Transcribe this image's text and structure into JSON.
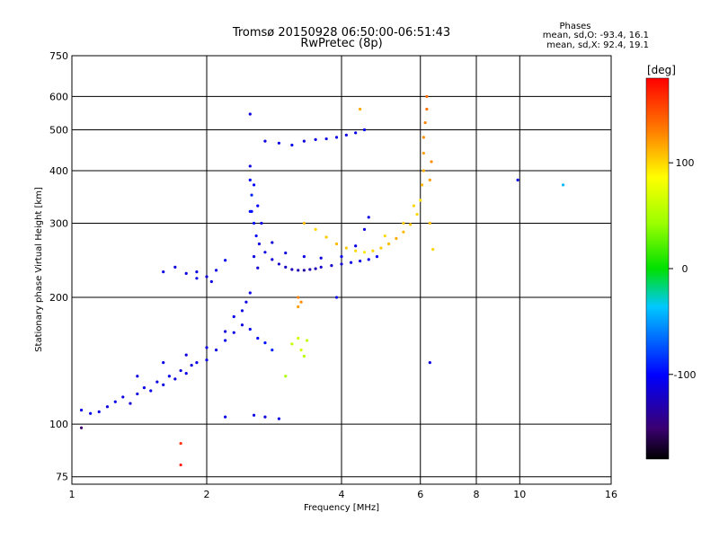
{
  "chart_data": {
    "type": "scatter",
    "title_line1": "Tromsø 20150928 06:50:00-06:51:43",
    "title_line2": "RwPretec (8p)",
    "stats": {
      "heading": "Phases",
      "o_line": "mean, sd,O: -93.4, 16.1",
      "x_line": "mean, sd,X:  92.4, 19.1"
    },
    "xlabel": "Frequency [MHz]",
    "ylabel": "Stationary phase Virtual Height [km]",
    "x_scale": "log",
    "y_scale": "log",
    "xlim": [
      1,
      16
    ],
    "ylim": [
      72,
      750
    ],
    "x_ticks": [
      {
        "value": 1,
        "label": "1"
      },
      {
        "value": 2,
        "label": "2"
      },
      {
        "value": 4,
        "label": "4"
      },
      {
        "value": 6,
        "label": "6"
      },
      {
        "value": 8,
        "label": "8"
      },
      {
        "value": 10,
        "label": "10"
      },
      {
        "value": 16,
        "label": "16"
      }
    ],
    "y_ticks": [
      {
        "value": 75,
        "label": "75"
      },
      {
        "value": 100,
        "label": "100"
      },
      {
        "value": 200,
        "label": "200"
      },
      {
        "value": 300,
        "label": "300"
      },
      {
        "value": 400,
        "label": "400"
      },
      {
        "value": 500,
        "label": "500"
      },
      {
        "value": 600,
        "label": "600"
      },
      {
        "value": 750,
        "label": "750"
      }
    ],
    "grid": true,
    "colorbar": {
      "label": "[deg]",
      "range": [
        -180,
        180
      ],
      "ticks": [
        {
          "value": 100,
          "label": "100"
        },
        {
          "value": 0,
          "label": "0"
        },
        {
          "value": -100,
          "label": "-100"
        }
      ]
    },
    "series": [
      {
        "points": [
          [
            1.05,
            108,
            -110
          ],
          [
            1.1,
            106,
            -105
          ],
          [
            1.15,
            107,
            -110
          ],
          [
            1.2,
            110,
            -112
          ],
          [
            1.25,
            113,
            -108
          ],
          [
            1.3,
            116,
            -110
          ],
          [
            1.35,
            112,
            -115
          ],
          [
            1.4,
            118,
            -112
          ],
          [
            1.45,
            122,
            -110
          ],
          [
            1.5,
            120,
            -108
          ],
          [
            1.55,
            126,
            -112
          ],
          [
            1.6,
            124,
            -110
          ],
          [
            1.65,
            130,
            -105
          ],
          [
            1.7,
            128,
            -112
          ],
          [
            1.75,
            134,
            -110
          ],
          [
            1.8,
            132,
            -108
          ],
          [
            1.85,
            138,
            -112
          ],
          [
            1.9,
            140,
            -110
          ],
          [
            2.0,
            142,
            -110
          ],
          [
            2.1,
            150,
            -112
          ],
          [
            2.2,
            158,
            -108
          ],
          [
            2.3,
            165,
            -110
          ],
          [
            2.4,
            172,
            -112
          ],
          [
            2.5,
            168,
            -105
          ],
          [
            2.6,
            160,
            -100
          ],
          [
            2.7,
            156,
            -95
          ],
          [
            2.8,
            150,
            -90
          ],
          [
            1.4,
            130,
            -110
          ],
          [
            1.6,
            140,
            -108
          ],
          [
            1.8,
            146,
            -112
          ],
          [
            2.0,
            152,
            -110
          ],
          [
            2.2,
            166,
            -112
          ],
          [
            2.4,
            186,
            -110
          ],
          [
            2.45,
            195,
            -112
          ],
          [
            2.5,
            205,
            -110
          ],
          [
            2.3,
            180,
            -108
          ]
        ]
      },
      {
        "points": [
          [
            1.7,
            236,
            -112
          ],
          [
            1.8,
            228,
            -110
          ],
          [
            1.9,
            222,
            -108
          ],
          [
            2.0,
            224,
            -112
          ],
          [
            2.1,
            232,
            -110
          ],
          [
            2.2,
            245,
            -108
          ],
          [
            1.9,
            230,
            -110
          ],
          [
            2.05,
            218,
            -112
          ]
        ]
      },
      {
        "points": [
          [
            2.5,
            410,
            -110
          ],
          [
            2.5,
            380,
            -100
          ],
          [
            2.52,
            350,
            -90
          ],
          [
            2.52,
            320,
            -100
          ],
          [
            2.55,
            300,
            -95
          ],
          [
            2.58,
            280,
            -105
          ],
          [
            2.62,
            268,
            -110
          ],
          [
            2.7,
            256,
            -112
          ],
          [
            2.8,
            246,
            -115
          ],
          [
            2.9,
            240,
            -118
          ],
          [
            3.0,
            236,
            -122
          ],
          [
            3.1,
            233,
            -125
          ],
          [
            3.2,
            232,
            -128
          ],
          [
            3.3,
            232,
            -130
          ],
          [
            3.4,
            233,
            -128
          ],
          [
            3.5,
            234,
            -125
          ],
          [
            3.6,
            236,
            -120
          ],
          [
            3.8,
            238,
            -118
          ],
          [
            4.0,
            240,
            -115
          ],
          [
            4.2,
            242,
            -110
          ],
          [
            4.4,
            244,
            -110
          ],
          [
            4.6,
            246,
            -108
          ],
          [
            4.8,
            250,
            -105
          ],
          [
            2.6,
            330,
            -100
          ],
          [
            2.65,
            300,
            -110
          ],
          [
            2.8,
            270,
            -112
          ],
          [
            3.0,
            255,
            -112
          ],
          [
            3.3,
            250,
            -110
          ],
          [
            3.6,
            248,
            -110
          ],
          [
            4.0,
            250,
            -105
          ],
          [
            4.3,
            265,
            -110
          ],
          [
            4.5,
            290,
            -112
          ],
          [
            4.6,
            310,
            -110
          ],
          [
            2.55,
            250,
            -112
          ],
          [
            2.6,
            235,
            -115
          ],
          [
            2.5,
            320,
            -95
          ],
          [
            2.55,
            370,
            -100
          ]
        ]
      },
      {
        "points": [
          [
            2.7,
            470,
            -110
          ],
          [
            2.9,
            465,
            -110
          ],
          [
            3.1,
            460,
            -108
          ],
          [
            3.3,
            470,
            -112
          ],
          [
            3.5,
            474,
            -110
          ],
          [
            3.7,
            476,
            -112
          ],
          [
            3.9,
            480,
            -110
          ],
          [
            4.1,
            486,
            -110
          ],
          [
            4.3,
            492,
            -108
          ],
          [
            4.5,
            500,
            -105
          ]
        ]
      },
      {
        "points": [
          [
            3.3,
            300,
            110
          ],
          [
            3.5,
            290,
            100
          ],
          [
            3.7,
            278,
            105
          ],
          [
            3.9,
            268,
            110
          ],
          [
            4.1,
            262,
            105
          ],
          [
            4.3,
            258,
            100
          ],
          [
            4.5,
            256,
            95
          ],
          [
            4.7,
            258,
            100
          ],
          [
            4.9,
            262,
            105
          ],
          [
            5.1,
            268,
            110
          ],
          [
            5.3,
            276,
            115
          ],
          [
            5.5,
            286,
            110
          ],
          [
            5.7,
            298,
            105
          ],
          [
            5.9,
            315,
            100
          ],
          [
            6.0,
            340,
            95
          ],
          [
            6.05,
            370,
            110
          ],
          [
            6.1,
            400,
            115
          ],
          [
            6.1,
            440,
            120
          ],
          [
            6.1,
            480,
            125
          ],
          [
            6.15,
            520,
            130
          ],
          [
            6.2,
            560,
            135
          ],
          [
            6.2,
            600,
            140
          ],
          [
            6.3,
            380,
            120
          ],
          [
            6.35,
            420,
            125
          ],
          [
            6.3,
            300,
            110
          ],
          [
            6.4,
            260,
            100
          ],
          [
            5.0,
            280,
            100
          ],
          [
            5.5,
            300,
            105
          ],
          [
            5.8,
            330,
            100
          ],
          [
            3.2,
            200,
            130
          ],
          [
            3.25,
            195,
            125
          ],
          [
            3.2,
            190,
            120
          ]
        ]
      },
      {
        "points": [
          [
            3.1,
            155,
            60
          ],
          [
            3.2,
            160,
            65
          ],
          [
            3.25,
            150,
            70
          ],
          [
            3.3,
            145,
            55
          ],
          [
            3.35,
            158,
            60
          ],
          [
            3.0,
            130,
            50
          ]
        ]
      },
      {
        "points": [
          [
            2.55,
            105,
            -110
          ],
          [
            2.7,
            104,
            -112
          ],
          [
            2.9,
            103,
            -110
          ],
          [
            2.2,
            104,
            -108
          ],
          [
            1.05,
            98,
            -150
          ],
          [
            3.9,
            200,
            -110
          ],
          [
            9.9,
            380,
            -110
          ],
          [
            12.5,
            370,
            -40
          ],
          [
            6.3,
            140,
            -110
          ],
          [
            4.4,
            560,
            115
          ],
          [
            1.75,
            90,
            160
          ],
          [
            1.75,
            80,
            170
          ],
          [
            2.5,
            545,
            -110
          ],
          [
            1.6,
            230,
            -110
          ]
        ]
      }
    ]
  }
}
